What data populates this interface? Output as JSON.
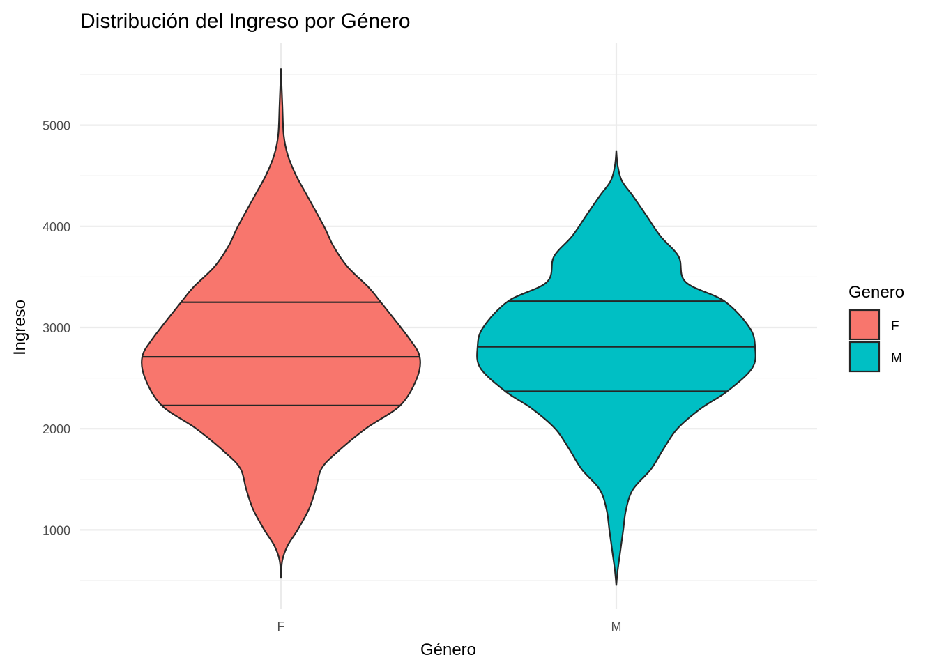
{
  "chart_data": {
    "type": "violin",
    "title": "Distribución del Ingreso por Género",
    "xlabel": "Género",
    "ylabel": "Ingreso",
    "categories": [
      "F",
      "M"
    ],
    "ylim": [
      400,
      5850
    ],
    "yticks": [
      1000,
      2000,
      3000,
      4000,
      5000
    ],
    "grid": true,
    "legend": {
      "title": "Genero",
      "placement": "right",
      "entries": [
        {
          "label": "F",
          "color": "#F8766D"
        },
        {
          "label": "M",
          "color": "#00BFC4"
        }
      ]
    },
    "series": [
      {
        "name": "F",
        "color": "#F8766D",
        "quantiles": [
          2230,
          2710,
          3250
        ],
        "min": 520,
        "max": 5560,
        "density": [
          [
            520,
            0.0
          ],
          [
            700,
            0.01
          ],
          [
            850,
            0.05
          ],
          [
            1000,
            0.12
          ],
          [
            1200,
            0.2
          ],
          [
            1400,
            0.25
          ],
          [
            1600,
            0.29
          ],
          [
            1750,
            0.39
          ],
          [
            2000,
            0.61
          ],
          [
            2230,
            0.86
          ],
          [
            2500,
            0.98
          ],
          [
            2710,
            1.0
          ],
          [
            2900,
            0.92
          ],
          [
            3250,
            0.72
          ],
          [
            3400,
            0.63
          ],
          [
            3600,
            0.48
          ],
          [
            3800,
            0.38
          ],
          [
            4000,
            0.31
          ],
          [
            4300,
            0.19
          ],
          [
            4500,
            0.11
          ],
          [
            4700,
            0.05
          ],
          [
            4900,
            0.02
          ],
          [
            5200,
            0.01
          ],
          [
            5560,
            0.0
          ]
        ]
      },
      {
        "name": "M",
        "color": "#00BFC4",
        "quantiles": [
          2370,
          2810,
          3260
        ],
        "min": 450,
        "max": 4750,
        "density": [
          [
            450,
            0.0
          ],
          [
            600,
            0.01
          ],
          [
            800,
            0.03
          ],
          [
            1000,
            0.05
          ],
          [
            1200,
            0.07
          ],
          [
            1400,
            0.12
          ],
          [
            1600,
            0.25
          ],
          [
            1800,
            0.34
          ],
          [
            2000,
            0.44
          ],
          [
            2200,
            0.61
          ],
          [
            2370,
            0.8
          ],
          [
            2600,
            0.98
          ],
          [
            2810,
            1.0
          ],
          [
            3000,
            0.96
          ],
          [
            3260,
            0.78
          ],
          [
            3450,
            0.5
          ],
          [
            3700,
            0.45
          ],
          [
            3900,
            0.32
          ],
          [
            4100,
            0.22
          ],
          [
            4300,
            0.12
          ],
          [
            4450,
            0.04
          ],
          [
            4600,
            0.01
          ],
          [
            4750,
            0.0
          ]
        ]
      }
    ]
  }
}
